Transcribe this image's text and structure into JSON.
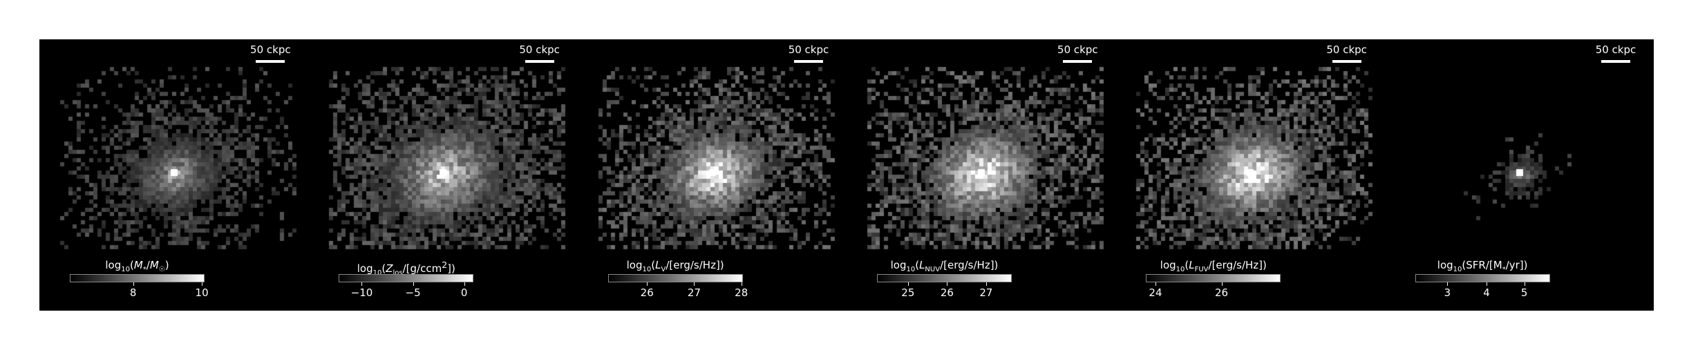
{
  "scalebar_label": "50 ckpc",
  "panels": [
    {
      "colorbar_label": "log10(M*/M☉)",
      "ticks": [
        {
          "label": "8",
          "frac": 0.47
        },
        {
          "label": "10",
          "frac": 0.98
        }
      ],
      "intensity": 0.55,
      "spread": 1.0
    },
    {
      "colorbar_label": "log10(Zlos/[g/ccm2])",
      "ticks": [
        {
          "label": "−10",
          "frac": 0.17
        },
        {
          "label": "−5",
          "frac": 0.55
        },
        {
          "label": "0",
          "frac": 0.93
        }
      ],
      "intensity": 0.7,
      "spread": 1.35
    },
    {
      "colorbar_label": "log10(LV/[erg/s/Hz])",
      "ticks": [
        {
          "label": "26",
          "frac": 0.29
        },
        {
          "label": "27",
          "frac": 0.64
        },
        {
          "label": "28",
          "frac": 0.99
        }
      ],
      "intensity": 0.85,
      "spread": 1.2
    },
    {
      "colorbar_label": "log10(LNUV/[erg/s/Hz])",
      "ticks": [
        {
          "label": "25",
          "frac": 0.23
        },
        {
          "label": "26",
          "frac": 0.52
        },
        {
          "label": "27",
          "frac": 0.81
        }
      ],
      "intensity": 0.9,
      "spread": 1.25
    },
    {
      "colorbar_label": "log10(LFUV/[erg/s/Hz])",
      "ticks": [
        {
          "label": "24",
          "frac": 0.07
        },
        {
          "label": "26",
          "frac": 0.56
        }
      ],
      "intensity": 0.9,
      "spread": 1.25
    },
    {
      "colorbar_label": "log10(SFR/[M*/yr])",
      "ticks": [
        {
          "label": "3",
          "frac": 0.24
        },
        {
          "label": "4",
          "frac": 0.53
        },
        {
          "label": "5",
          "frac": 0.81
        }
      ],
      "intensity": 0.45,
      "spread": 0.45
    }
  ]
}
